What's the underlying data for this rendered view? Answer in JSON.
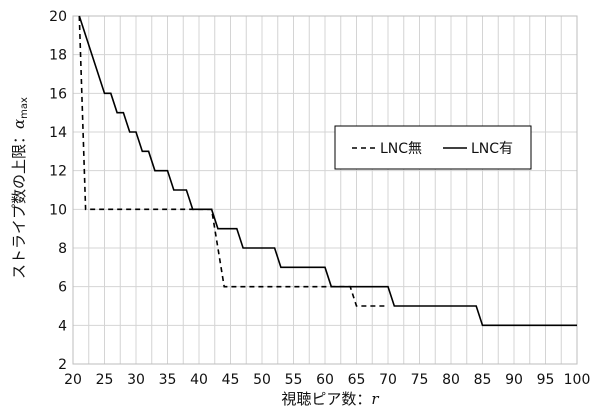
{
  "chart_data": {
    "type": "line",
    "title": "",
    "xlabel": "視聴ピア数：",
    "xlabel_var": "r",
    "ylabel": "ストライプ数の上限：",
    "ylabel_var": "α",
    "ylabel_sub": "max",
    "xlim": [
      20,
      100
    ],
    "ylim": [
      2,
      20
    ],
    "xticks": [
      20,
      25,
      30,
      35,
      40,
      45,
      50,
      55,
      60,
      65,
      70,
      75,
      80,
      85,
      90,
      95,
      100
    ],
    "yticks": [
      2,
      4,
      6,
      8,
      10,
      12,
      14,
      16,
      18,
      20
    ],
    "grid": "both",
    "legend_position": "right",
    "series": [
      {
        "name": "LNC無",
        "style": "dashed",
        "color": "#000000",
        "points": [
          [
            21,
            20
          ],
          [
            22,
            10
          ],
          [
            42,
            10
          ],
          [
            43,
            8
          ],
          [
            44,
            6
          ],
          [
            64,
            6
          ],
          [
            65,
            5
          ],
          [
            70,
            5
          ]
        ]
      },
      {
        "name": "LNC有",
        "style": "solid",
        "color": "#000000",
        "points": [
          [
            21,
            20
          ],
          [
            25,
            16
          ],
          [
            26,
            16
          ],
          [
            27,
            15
          ],
          [
            28,
            15
          ],
          [
            29,
            14
          ],
          [
            30,
            14
          ],
          [
            31,
            13
          ],
          [
            32,
            13
          ],
          [
            33,
            12
          ],
          [
            35,
            12
          ],
          [
            36,
            11
          ],
          [
            38,
            11
          ],
          [
            39,
            10
          ],
          [
            42,
            10
          ],
          [
            43,
            9
          ],
          [
            46,
            9
          ],
          [
            47,
            8
          ],
          [
            52,
            8
          ],
          [
            53,
            7
          ],
          [
            60,
            7
          ],
          [
            61,
            6
          ],
          [
            70,
            6
          ],
          [
            71,
            5
          ],
          [
            84,
            5
          ],
          [
            85,
            4
          ],
          [
            100,
            4
          ]
        ]
      }
    ]
  }
}
